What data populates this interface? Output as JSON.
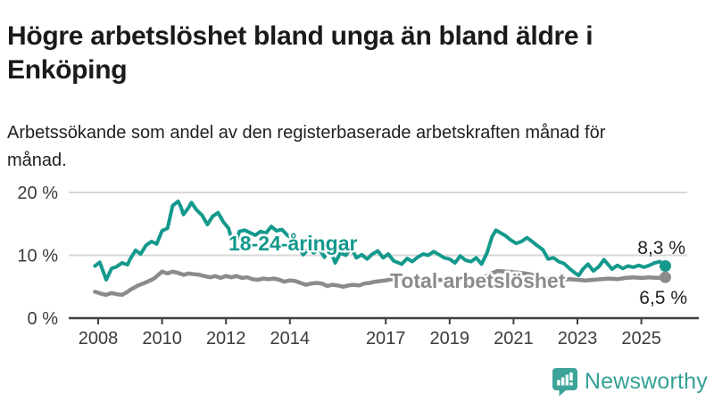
{
  "header": {
    "title": "Högre arbetslöshet bland unga än bland äldre i Enköping",
    "subtitle": "Arbetssökande som andel av den registerbaserade arbetskraften månad för månad."
  },
  "branding": {
    "logo_text": "Newsworthy",
    "logo_color": "#35a096",
    "logo_icon": "speech-bubble-bar-chart-exclamation"
  },
  "chart_data": {
    "type": "line",
    "title": "",
    "xlabel": "",
    "ylabel": "",
    "grid": true,
    "ylim": [
      0,
      21
    ],
    "xlim_years": [
      2007.8,
      2026.8
    ],
    "y_ticks": [
      {
        "value": 0,
        "label": "0 %"
      },
      {
        "value": 10,
        "label": "10 %"
      },
      {
        "value": 20,
        "label": "20 %"
      }
    ],
    "x_ticks": [
      {
        "value": 2008,
        "label": "2008"
      },
      {
        "value": 2010,
        "label": "2010"
      },
      {
        "value": 2012,
        "label": "2012"
      },
      {
        "value": 2014,
        "label": "2014"
      },
      {
        "value": 2017,
        "label": "2017"
      },
      {
        "value": 2019,
        "label": "2019"
      },
      {
        "value": 2021,
        "label": "2021"
      },
      {
        "value": 2023,
        "label": "2023"
      },
      {
        "value": 2025,
        "label": "2025"
      }
    ],
    "series": [
      {
        "name": "18-24-åringar",
        "color": "#14998c",
        "end_label": "8,3 %",
        "end_value": 8.3,
        "points": [
          [
            2007.9,
            8.3
          ],
          [
            2008.05,
            8.9
          ],
          [
            2008.25,
            6.1
          ],
          [
            2008.42,
            7.9
          ],
          [
            2008.58,
            8.2
          ],
          [
            2008.75,
            8.8
          ],
          [
            2008.92,
            8.5
          ],
          [
            2009.0,
            9.4
          ],
          [
            2009.17,
            10.8
          ],
          [
            2009.33,
            10.2
          ],
          [
            2009.5,
            11.6
          ],
          [
            2009.67,
            12.2
          ],
          [
            2009.83,
            11.8
          ],
          [
            2010.0,
            13.9
          ],
          [
            2010.17,
            14.3
          ],
          [
            2010.33,
            17.9
          ],
          [
            2010.5,
            18.6
          ],
          [
            2010.58,
            17.8
          ],
          [
            2010.67,
            16.5
          ],
          [
            2010.83,
            17.6
          ],
          [
            2010.92,
            18.4
          ],
          [
            2011.08,
            17.2
          ],
          [
            2011.25,
            16.4
          ],
          [
            2011.42,
            14.9
          ],
          [
            2011.58,
            16.2
          ],
          [
            2011.75,
            16.8
          ],
          [
            2011.92,
            15.3
          ],
          [
            2012.08,
            14.3
          ],
          [
            2012.25,
            11.2
          ],
          [
            2012.42,
            13.8
          ],
          [
            2012.58,
            14.0
          ],
          [
            2012.75,
            13.6
          ],
          [
            2012.92,
            13.2
          ],
          [
            2013.08,
            13.8
          ],
          [
            2013.25,
            13.5
          ],
          [
            2013.42,
            14.6
          ],
          [
            2013.58,
            13.9
          ],
          [
            2013.75,
            14.1
          ],
          [
            2013.92,
            13.2
          ],
          [
            2014.08,
            12.6
          ],
          [
            2014.25,
            11.4
          ],
          [
            2014.42,
            10.1
          ],
          [
            2014.58,
            11.0
          ],
          [
            2014.75,
            10.4
          ],
          [
            2014.92,
            11.0
          ],
          [
            2015.08,
            9.7
          ],
          [
            2015.25,
            11.1
          ],
          [
            2015.42,
            8.8
          ],
          [
            2015.58,
            10.4
          ],
          [
            2015.75,
            10.0
          ],
          [
            2015.92,
            11.2
          ],
          [
            2016.08,
            9.6
          ],
          [
            2016.25,
            10.1
          ],
          [
            2016.42,
            9.4
          ],
          [
            2016.58,
            10.2
          ],
          [
            2016.75,
            10.7
          ],
          [
            2016.92,
            9.6
          ],
          [
            2017.08,
            10.2
          ],
          [
            2017.25,
            9.1
          ],
          [
            2017.5,
            8.6
          ],
          [
            2017.67,
            9.5
          ],
          [
            2017.83,
            9.0
          ],
          [
            2018.0,
            9.7
          ],
          [
            2018.17,
            10.2
          ],
          [
            2018.33,
            10.0
          ],
          [
            2018.5,
            10.6
          ],
          [
            2018.67,
            10.1
          ],
          [
            2018.83,
            9.6
          ],
          [
            2019.0,
            9.4
          ],
          [
            2019.17,
            8.8
          ],
          [
            2019.33,
            9.9
          ],
          [
            2019.5,
            9.2
          ],
          [
            2019.67,
            9.0
          ],
          [
            2019.83,
            9.6
          ],
          [
            2020.0,
            8.6
          ],
          [
            2020.17,
            10.4
          ],
          [
            2020.33,
            13.0
          ],
          [
            2020.45,
            14.0
          ],
          [
            2020.58,
            13.6
          ],
          [
            2020.75,
            13.1
          ],
          [
            2020.92,
            12.4
          ],
          [
            2021.08,
            11.9
          ],
          [
            2021.25,
            12.2
          ],
          [
            2021.42,
            12.8
          ],
          [
            2021.58,
            12.2
          ],
          [
            2021.75,
            11.5
          ],
          [
            2021.92,
            10.9
          ],
          [
            2022.08,
            9.4
          ],
          [
            2022.25,
            9.6
          ],
          [
            2022.42,
            9.0
          ],
          [
            2022.58,
            8.7
          ],
          [
            2022.75,
            7.9
          ],
          [
            2022.92,
            7.2
          ],
          [
            2023.04,
            6.8
          ],
          [
            2023.17,
            7.8
          ],
          [
            2023.33,
            8.6
          ],
          [
            2023.5,
            7.5
          ],
          [
            2023.67,
            8.2
          ],
          [
            2023.83,
            9.3
          ],
          [
            2024.0,
            8.3
          ],
          [
            2024.08,
            7.8
          ],
          [
            2024.25,
            8.4
          ],
          [
            2024.42,
            7.9
          ],
          [
            2024.58,
            8.3
          ],
          [
            2024.75,
            8.1
          ],
          [
            2024.92,
            8.4
          ],
          [
            2025.08,
            8.1
          ],
          [
            2025.25,
            8.4
          ],
          [
            2025.42,
            8.8
          ],
          [
            2025.58,
            9.0
          ],
          [
            2025.75,
            8.3
          ]
        ]
      },
      {
        "name": "Total arbetslöshet",
        "color": "#8b8b8b",
        "end_label": "6,5 %",
        "end_value": 6.5,
        "points": [
          [
            2007.9,
            4.2
          ],
          [
            2008.08,
            3.9
          ],
          [
            2008.25,
            3.7
          ],
          [
            2008.42,
            4.0
          ],
          [
            2008.58,
            3.8
          ],
          [
            2008.75,
            3.7
          ],
          [
            2008.92,
            4.2
          ],
          [
            2009.0,
            4.5
          ],
          [
            2009.25,
            5.2
          ],
          [
            2009.5,
            5.7
          ],
          [
            2009.75,
            6.3
          ],
          [
            2010.0,
            7.4
          ],
          [
            2010.17,
            7.1
          ],
          [
            2010.33,
            7.4
          ],
          [
            2010.5,
            7.2
          ],
          [
            2010.67,
            6.9
          ],
          [
            2010.83,
            7.1
          ],
          [
            2011.0,
            7.0
          ],
          [
            2011.17,
            6.9
          ],
          [
            2011.33,
            6.7
          ],
          [
            2011.5,
            6.5
          ],
          [
            2011.67,
            6.7
          ],
          [
            2011.83,
            6.4
          ],
          [
            2012.0,
            6.7
          ],
          [
            2012.17,
            6.5
          ],
          [
            2012.33,
            6.7
          ],
          [
            2012.5,
            6.4
          ],
          [
            2012.67,
            6.5
          ],
          [
            2012.83,
            6.2
          ],
          [
            2013.0,
            6.1
          ],
          [
            2013.17,
            6.3
          ],
          [
            2013.33,
            6.2
          ],
          [
            2013.5,
            6.3
          ],
          [
            2013.67,
            6.1
          ],
          [
            2013.83,
            5.8
          ],
          [
            2014.0,
            6.0
          ],
          [
            2014.17,
            5.9
          ],
          [
            2014.33,
            5.6
          ],
          [
            2014.5,
            5.3
          ],
          [
            2014.67,
            5.5
          ],
          [
            2014.83,
            5.6
          ],
          [
            2015.0,
            5.5
          ],
          [
            2015.17,
            5.1
          ],
          [
            2015.33,
            5.3
          ],
          [
            2015.5,
            5.2
          ],
          [
            2015.67,
            5.0
          ],
          [
            2015.83,
            5.2
          ],
          [
            2016.0,
            5.3
          ],
          [
            2016.17,
            5.2
          ],
          [
            2016.33,
            5.5
          ],
          [
            2016.5,
            5.6
          ],
          [
            2016.67,
            5.8
          ],
          [
            2016.83,
            5.9
          ],
          [
            2017.0,
            6.0
          ],
          [
            2017.17,
            6.2
          ],
          [
            2017.33,
            6.1
          ],
          [
            2017.5,
            6.0
          ],
          [
            2017.67,
            6.2
          ],
          [
            2017.83,
            6.1
          ],
          [
            2018.0,
            6.0
          ],
          [
            2018.17,
            6.2
          ],
          [
            2018.33,
            6.1
          ],
          [
            2018.5,
            6.0
          ],
          [
            2018.67,
            6.1
          ],
          [
            2018.83,
            6.0
          ],
          [
            2019.0,
            6.1
          ],
          [
            2019.17,
            6.2
          ],
          [
            2019.33,
            6.1
          ],
          [
            2019.5,
            6.2
          ],
          [
            2019.67,
            6.3
          ],
          [
            2019.83,
            6.2
          ],
          [
            2020.0,
            6.3
          ],
          [
            2020.25,
            7.0
          ],
          [
            2020.5,
            7.5
          ],
          [
            2020.75,
            7.4
          ],
          [
            2021.0,
            7.3
          ],
          [
            2021.25,
            7.2
          ],
          [
            2021.5,
            7.0
          ],
          [
            2021.75,
            6.6
          ],
          [
            2022.0,
            6.4
          ],
          [
            2022.25,
            6.2
          ],
          [
            2022.5,
            6.1
          ],
          [
            2022.75,
            6.2
          ],
          [
            2023.0,
            6.1
          ],
          [
            2023.25,
            6.0
          ],
          [
            2023.5,
            6.1
          ],
          [
            2023.75,
            6.2
          ],
          [
            2024.0,
            6.3
          ],
          [
            2024.25,
            6.2
          ],
          [
            2024.5,
            6.4
          ],
          [
            2024.75,
            6.5
          ],
          [
            2025.0,
            6.4
          ],
          [
            2025.25,
            6.5
          ],
          [
            2025.5,
            6.4
          ],
          [
            2025.75,
            6.5
          ]
        ]
      }
    ],
    "colors": {
      "grid": "#d8d8d8",
      "axis": "#404040",
      "tick_label": "#3b3b3b",
      "end_label": "#222222"
    }
  }
}
